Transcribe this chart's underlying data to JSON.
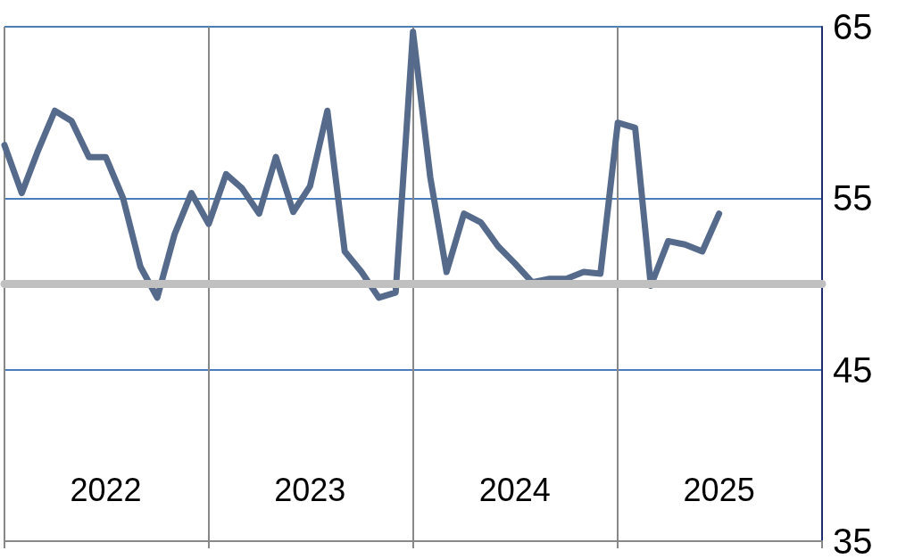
{
  "chart_data": {
    "type": "line",
    "x": [
      "2022-01",
      "2022-02",
      "2022-03",
      "2022-04",
      "2022-05",
      "2022-06",
      "2022-07",
      "2022-08",
      "2022-09",
      "2022-10",
      "2022-11",
      "2022-12",
      "2023-01",
      "2023-02",
      "2023-03",
      "2023-04",
      "2023-05",
      "2023-06",
      "2023-07",
      "2023-08",
      "2023-09",
      "2023-10",
      "2023-11",
      "2023-12",
      "2024-01",
      "2024-02",
      "2024-03",
      "2024-04",
      "2024-05",
      "2024-06",
      "2024-07",
      "2024-08",
      "2024-09",
      "2024-10",
      "2024-11",
      "2024-12",
      "2025-01",
      "2025-02",
      "2025-03",
      "2025-04",
      "2025-05",
      "2025-06",
      "2025-07"
    ],
    "series": [
      {
        "color": "#566b8c",
        "values": [
          58.1,
          55.3,
          57.7,
          60.1,
          59.5,
          57.4,
          57.4,
          55.0,
          51.0,
          49.2,
          52.9,
          55.3,
          53.5,
          56.4,
          55.6,
          54.1,
          57.4,
          54.2,
          55.7,
          60.1,
          51.9,
          50.7,
          49.2,
          49.5,
          64.7,
          56.2,
          50.7,
          54.1,
          53.6,
          52.2,
          51.2,
          50.1,
          50.3,
          50.3,
          50.7,
          50.6,
          59.4,
          59.1,
          49.9,
          52.5,
          52.3,
          51.9,
          54.1
        ]
      }
    ],
    "xlim": [
      "2022-01",
      "2026-01"
    ],
    "xticks": [
      {
        "value": "2022-01",
        "label": null
      },
      {
        "value": "2022-07",
        "label": "2022"
      },
      {
        "value": "2023-01",
        "label": null
      },
      {
        "value": "2023-07",
        "label": "2023"
      },
      {
        "value": "2024-01",
        "label": null
      },
      {
        "value": "2024-07",
        "label": "2024"
      },
      {
        "value": "2025-01",
        "label": null
      },
      {
        "value": "2025-07",
        "label": "2025"
      },
      {
        "value": "2026-01",
        "label": null
      }
    ],
    "ylim": [
      35,
      65
    ],
    "yticks": [
      35,
      45,
      55,
      65
    ],
    "ref_lines": [
      {
        "axis": "y",
        "value": 50,
        "color": "#c0c0c0"
      }
    ],
    "grid": true,
    "marker": "none",
    "line_style": "solid"
  }
}
